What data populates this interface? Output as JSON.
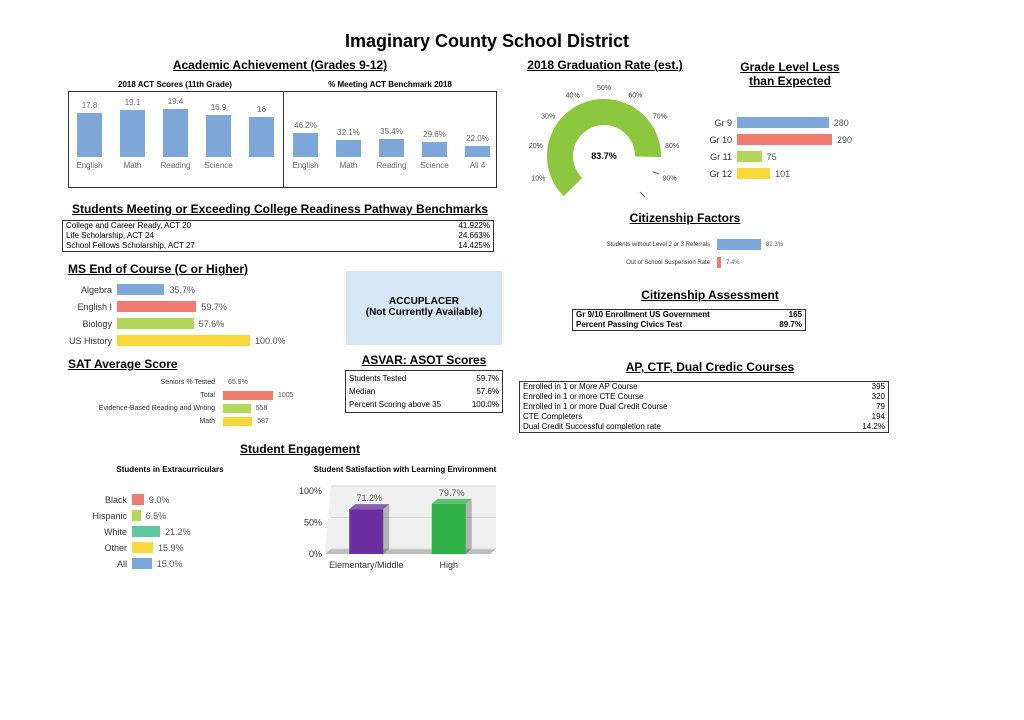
{
  "title": "Imaginary County School District",
  "academic": {
    "heading": "Academic Achievement (Grades 9-12)",
    "act": {
      "subtitle": "2018 ACT Scores (11th Grade)"
    },
    "benchmark": {
      "subtitle": "% Meeting ACT Benchmark 2018"
    }
  },
  "readiness": {
    "heading": "Students Meeting or Exceeding College Readiness Pathway Benchmarks",
    "rows": [
      {
        "label": "College and Career Ready, ACT 20",
        "value": "41.922%"
      },
      {
        "label": "Life Scholarship, ACT 24",
        "value": "24.663%"
      },
      {
        "label": "School Fellows Scholarship, ACT 27",
        "value": "14.425%"
      }
    ]
  },
  "ms_eoc": {
    "heading": "MS End of Course (C or Higher)"
  },
  "accuplacer": {
    "line1": "ACCUPLACER",
    "line2": "(Not Currently Available)"
  },
  "sat": {
    "heading": "SAT Average Score"
  },
  "asvab": {
    "heading": "ASVAR: ASOT Scores",
    "rows": [
      {
        "label": "Students Tested",
        "value": "59.7%"
      },
      {
        "label": "Median",
        "value": "57.6%"
      },
      {
        "label": "Percent Scoring above 35",
        "value": "100.0%"
      }
    ]
  },
  "engagement": {
    "heading": "Student Engagement",
    "extra_title": "Students in Extracurriculars",
    "satisfaction_title": "Student Satisfaction with Learning Environment"
  },
  "graduation": {
    "heading": "2018 Graduation Rate (est.)"
  },
  "grade_level": {
    "heading_line1": "Grade Level Less",
    "heading_line2": "than Expected"
  },
  "citizenship_factors": {
    "heading": "Citizenship Factors"
  },
  "citizenship_assessment": {
    "heading": "Citizenship Assessment",
    "rows": [
      {
        "label": "Gr 9/10 Enrollment US Government",
        "value": "165"
      },
      {
        "label": "Percent Passing Civics Test",
        "value": "89.7%"
      }
    ]
  },
  "ap": {
    "heading": "AP, CTF, Dual Credic Courses",
    "rows": [
      {
        "label": "Enrolled in 1 or More AP Course",
        "value": "395"
      },
      {
        "label": "Enrolled in 1 or more CTE Course",
        "value": "320"
      },
      {
        "label": "Enrolled in 1 or more Dual Credit Course",
        "value": "79"
      },
      {
        "label": "CTE Completers",
        "value": "194"
      },
      {
        "label": "Dual Credit Successful completion rate",
        "value": "14.2%"
      }
    ]
  },
  "chart_data": [
    {
      "id": "act",
      "type": "bar",
      "title": "2018 ACT Scores (11th Grade)",
      "categories": [
        "English",
        "Math",
        "Reading",
        "Science",
        ""
      ],
      "values": [
        17.8,
        19.1,
        19.4,
        16.9,
        16
      ],
      "labels": [
        "17.8",
        "19.1",
        "19.4",
        "16.9",
        "16"
      ],
      "color": "#7da7d9"
    },
    {
      "id": "benchmark",
      "type": "bar",
      "title": "% Meeting ACT Benchmark 2018",
      "categories": [
        "English",
        "Math",
        "Reading",
        "Science",
        "All 4"
      ],
      "values": [
        46.2,
        32.1,
        35.4,
        29.6,
        22.0
      ],
      "labels": [
        "46.2%",
        "32.1%",
        "35.4%",
        "29.6%",
        "22.0%"
      ],
      "color": "#7da7d9"
    },
    {
      "id": "ms_eoc",
      "type": "bar",
      "orientation": "horizontal",
      "categories": [
        "Algebra",
        "English I",
        "Biology",
        "US History"
      ],
      "values": [
        35.7,
        59.7,
        57.6,
        100.0
      ],
      "labels": [
        "35.7%",
        "59.7%",
        "57.6%",
        "100.0%"
      ],
      "colors": [
        "#7da7d9",
        "#f07b6f",
        "#b5d65d",
        "#f9d93a"
      ]
    },
    {
      "id": "sat",
      "type": "bar",
      "orientation": "horizontal",
      "categories": [
        "Seniors % Tested",
        "Total",
        "Evidence-Based Reading and Writing",
        "Math"
      ],
      "values": [
        null,
        1005,
        558,
        587
      ],
      "labels": [
        "65.9%",
        "1005",
        "558",
        "587"
      ],
      "colors": [
        "#7da7d9",
        "#f07b6f",
        "#b5d65d",
        "#f9d93a"
      ]
    },
    {
      "id": "extracurricular",
      "type": "bar",
      "orientation": "horizontal",
      "title": "Students in Extracurriculars",
      "categories": [
        "Black",
        "Hispanic",
        "White",
        "Other",
        "All"
      ],
      "values": [
        9.0,
        6.5,
        21.2,
        15.9,
        15.0
      ],
      "labels": [
        "9.0%",
        "6.5%",
        "21.2%",
        "15.9%",
        "15.0%"
      ],
      "colors": [
        "#f07b6f",
        "#b5d65d",
        "#5cc7a3",
        "#f9d93a",
        "#7da7d9"
      ]
    },
    {
      "id": "satisfaction",
      "type": "bar",
      "title": "Student Satisfaction with Learning Environment",
      "categories": [
        "Elementary/Middle",
        "High"
      ],
      "values": [
        71.2,
        79.7
      ],
      "labels": [
        "71.2%",
        "79.7%"
      ],
      "yticks": [
        "100%",
        "50%",
        "0%"
      ],
      "ylim": [
        0,
        100
      ],
      "colors": [
        "#6b2fa0",
        "#2eb047"
      ]
    },
    {
      "id": "graduation",
      "type": "gauge",
      "title": "2018 Graduation Rate (est.)",
      "value": 83.7,
      "label": "83.7%",
      "ticks": [
        "0%",
        "10%",
        "20%",
        "30%",
        "40%",
        "50%",
        "60%",
        "70%",
        "80%",
        "90%",
        "100%"
      ],
      "color": "#8dc63f"
    },
    {
      "id": "grade_level",
      "type": "bar",
      "orientation": "horizontal",
      "categories": [
        "Gr 9",
        "Gr 10",
        "Gr 11",
        "Gr 12"
      ],
      "values": [
        280,
        290,
        75,
        101
      ],
      "labels": [
        "280",
        "290",
        "75",
        "101"
      ],
      "colors": [
        "#7da7d9",
        "#f07b6f",
        "#b5d65d",
        "#f9d93a"
      ]
    },
    {
      "id": "citizenship",
      "type": "bar",
      "orientation": "horizontal",
      "categories": [
        "Students without Level 2 or 3 Referrals",
        "Out of School Suspension Rate"
      ],
      "values": [
        82.3,
        7.4
      ],
      "labels": [
        "82.3%",
        "7.4%"
      ],
      "colors": [
        "#7da7d9",
        "#f07b6f"
      ]
    }
  ]
}
